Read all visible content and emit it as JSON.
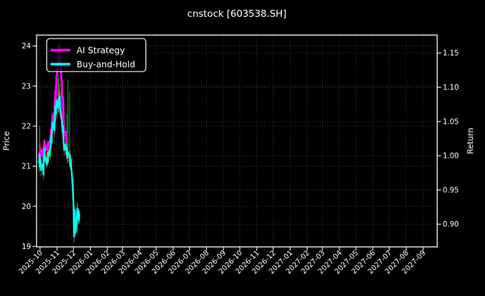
{
  "window": {
    "title": "cnstock [603538.SH]"
  },
  "chart_data": {
    "type": "candlestick+line",
    "title": "cnstock [603538.SH]",
    "grid": true,
    "legend": {
      "position": "upper-left",
      "items": [
        {
          "label": "AI Strategy",
          "color": "#ff00ff"
        },
        {
          "label": "Buy-and-Hold",
          "color": "#00ffff"
        }
      ]
    },
    "axes": {
      "left": {
        "label": "Price",
        "ticks": [
          "19",
          "20",
          "21",
          "22",
          "23",
          "24"
        ],
        "tick_values": [
          19,
          20,
          21,
          22,
          23,
          24
        ],
        "range": [
          18.99,
          24.27
        ]
      },
      "right": {
        "label": "Return",
        "ticks": [
          "0.90",
          "0.95",
          "1.00",
          "1.05",
          "1.10",
          "1.15"
        ],
        "tick_values": [
          0.9,
          0.95,
          1.0,
          1.05,
          1.1,
          1.15
        ],
        "range": [
          0.883,
          1.176
        ]
      },
      "x": {
        "rotation_deg": 45,
        "tick_labels": [
          "2025-10",
          "2025-11",
          "2025-12",
          "2026-01",
          "2026-02",
          "2026-03",
          "2026-04",
          "2026-05",
          "2026-06",
          "2026-07",
          "2026-08",
          "2026-09",
          "2026-10",
          "2026-11",
          "2026-12",
          "2027-01",
          "2027-02",
          "2027-03",
          "2027-04",
          "2027-05",
          "2027-06",
          "2027-07",
          "2027-08",
          "2027-09"
        ]
      }
    },
    "colors": {
      "background": "#000000",
      "foreground": "#ffffff",
      "grid": "#8a8a8a",
      "up": "#00bf3f",
      "down": "#e03b2f",
      "ai_strategy": "#ff00ff",
      "buy_and_hold": "#00ffff"
    },
    "ohlc_columns": [
      "open",
      "high",
      "low",
      "close"
    ],
    "dates": [
      "2025-09-29",
      "2025-09-30",
      "2025-10-01",
      "2025-10-02",
      "2025-10-03",
      "2025-10-06",
      "2025-10-07",
      "2025-10-08",
      "2025-10-09",
      "2025-10-10",
      "2025-10-13",
      "2025-10-14",
      "2025-10-15",
      "2025-10-16",
      "2025-10-17",
      "2025-10-20",
      "2025-10-21",
      "2025-10-22",
      "2025-10-23",
      "2025-10-24",
      "2025-10-27",
      "2025-10-28",
      "2025-10-29",
      "2025-10-30",
      "2025-10-31",
      "2025-11-03",
      "2025-11-04",
      "2025-11-05",
      "2025-11-06",
      "2025-11-07",
      "2025-11-10",
      "2025-11-11",
      "2025-11-12",
      "2025-11-13",
      "2025-11-14",
      "2025-11-17",
      "2025-11-18",
      "2025-11-19",
      "2025-11-20",
      "2025-11-21",
      "2025-11-24",
      "2025-11-25",
      "2025-11-26",
      "2025-11-27",
      "2025-11-28",
      "2025-12-01",
      "2025-12-02",
      "2025-12-03",
      "2025-12-04",
      "2025-12-05",
      "2025-12-08",
      "2025-12-09",
      "2025-12-10",
      "2025-12-11",
      "2025-12-12"
    ],
    "ohlc": [
      [
        21.0,
        21.3,
        20.85,
        21.1
      ],
      [
        21.05,
        22.0,
        20.95,
        21.3
      ],
      [
        21.3,
        21.6,
        20.9,
        21.0
      ],
      [
        21.0,
        21.35,
        20.9,
        21.15
      ],
      [
        21.15,
        21.25,
        20.75,
        20.9
      ],
      [
        20.9,
        21.25,
        20.8,
        21.05
      ],
      [
        21.05,
        21.15,
        20.65,
        20.8
      ],
      [
        20.8,
        21.3,
        20.75,
        21.2
      ],
      [
        21.2,
        21.6,
        21.1,
        21.45
      ],
      [
        21.45,
        21.55,
        21.1,
        21.25
      ],
      [
        21.25,
        21.35,
        20.95,
        21.05
      ],
      [
        21.05,
        21.35,
        21.0,
        21.2
      ],
      [
        21.2,
        21.4,
        21.0,
        21.1
      ],
      [
        21.1,
        21.5,
        21.05,
        21.35
      ],
      [
        21.35,
        21.45,
        21.1,
        21.25
      ],
      [
        21.25,
        21.65,
        21.15,
        21.5
      ],
      [
        21.5,
        21.95,
        21.4,
        21.75
      ],
      [
        21.75,
        21.85,
        21.45,
        21.6
      ],
      [
        21.6,
        22.1,
        21.55,
        21.95
      ],
      [
        21.95,
        22.35,
        21.8,
        22.1
      ],
      [
        22.1,
        22.2,
        21.7,
        21.9
      ],
      [
        21.9,
        22.45,
        21.8,
        22.25
      ],
      [
        22.25,
        23.0,
        22.15,
        22.5
      ],
      [
        22.5,
        22.7,
        22.1,
        22.3
      ],
      [
        22.3,
        23.1,
        22.2,
        22.65
      ],
      [
        22.65,
        23.2,
        22.35,
        22.45
      ],
      [
        22.45,
        23.3,
        22.35,
        22.7
      ],
      [
        22.7,
        22.9,
        22.3,
        22.55
      ],
      [
        22.55,
        23.05,
        22.4,
        22.75
      ],
      [
        22.75,
        22.85,
        22.2,
        22.4
      ],
      [
        22.4,
        22.55,
        21.95,
        22.1
      ],
      [
        22.1,
        22.25,
        21.7,
        21.85
      ],
      [
        21.85,
        22.2,
        21.75,
        22.0
      ],
      [
        22.0,
        22.1,
        21.5,
        21.6
      ],
      [
        21.6,
        21.75,
        21.25,
        21.4
      ],
      [
        21.4,
        21.7,
        21.3,
        21.55
      ],
      [
        21.55,
        21.65,
        21.2,
        21.3
      ],
      [
        21.3,
        22.3,
        21.2,
        21.45
      ],
      [
        21.45,
        21.55,
        21.05,
        21.2
      ],
      [
        21.2,
        23.15,
        21.1,
        21.35
      ],
      [
        21.1,
        22.85,
        21.0,
        21.25
      ],
      [
        21.25,
        21.4,
        20.95,
        21.0
      ],
      [
        21.0,
        21.3,
        20.9,
        21.15
      ],
      [
        21.15,
        21.25,
        20.8,
        20.95
      ],
      [
        20.95,
        21.2,
        20.55,
        20.85
      ],
      [
        20.6,
        20.7,
        19.8,
        20.1
      ],
      [
        19.9,
        20.0,
        19.1,
        19.25
      ],
      [
        19.3,
        20.0,
        19.2,
        19.9
      ],
      [
        19.85,
        19.95,
        19.35,
        19.45
      ],
      [
        19.5,
        19.7,
        19.25,
        19.35
      ],
      [
        19.4,
        20.1,
        19.35,
        19.95
      ],
      [
        19.9,
        20.05,
        19.6,
        19.7
      ],
      [
        19.7,
        19.95,
        19.55,
        19.9
      ],
      [
        19.85,
        19.9,
        19.55,
        19.65
      ],
      [
        19.7,
        19.9,
        19.6,
        19.8
      ]
    ],
    "series": [
      {
        "name": "AI Strategy",
        "axis": "return",
        "color": "#ff00ff",
        "linewidth": 3,
        "values": [
          1.0,
          1.005,
          1.002,
          1.01,
          1.0,
          1.008,
          0.998,
          1.012,
          1.022,
          1.015,
          1.008,
          1.015,
          1.01,
          1.02,
          1.015,
          1.025,
          1.038,
          1.03,
          1.048,
          1.06,
          1.05,
          1.075,
          1.095,
          1.085,
          1.115,
          1.13,
          1.16,
          1.15,
          1.163,
          1.14,
          1.1,
          1.07,
          1.085,
          1.05,
          1.03,
          1.035,
          1.02,
          null,
          null,
          null,
          null,
          null,
          null,
          null,
          null,
          null,
          null,
          null,
          null,
          null,
          null,
          null,
          null,
          null,
          null
        ]
      },
      {
        "name": "Buy-and-Hold",
        "axis": "price",
        "color": "#00ffff",
        "linewidth": 2.3,
        "values": [
          21.1,
          21.3,
          21.0,
          21.15,
          20.9,
          21.05,
          20.8,
          21.2,
          21.45,
          21.25,
          21.05,
          21.2,
          21.1,
          21.35,
          21.25,
          21.5,
          21.75,
          21.6,
          21.95,
          22.1,
          21.9,
          22.25,
          22.5,
          22.3,
          22.65,
          22.45,
          22.7,
          22.55,
          22.75,
          22.4,
          22.1,
          21.85,
          22.0,
          21.6,
          21.4,
          21.55,
          21.3,
          21.45,
          21.2,
          21.35,
          21.25,
          21.0,
          21.15,
          20.95,
          20.85,
          20.1,
          19.25,
          19.9,
          19.45,
          19.35,
          19.95,
          19.7,
          19.9,
          19.65,
          19.8
        ]
      }
    ]
  }
}
